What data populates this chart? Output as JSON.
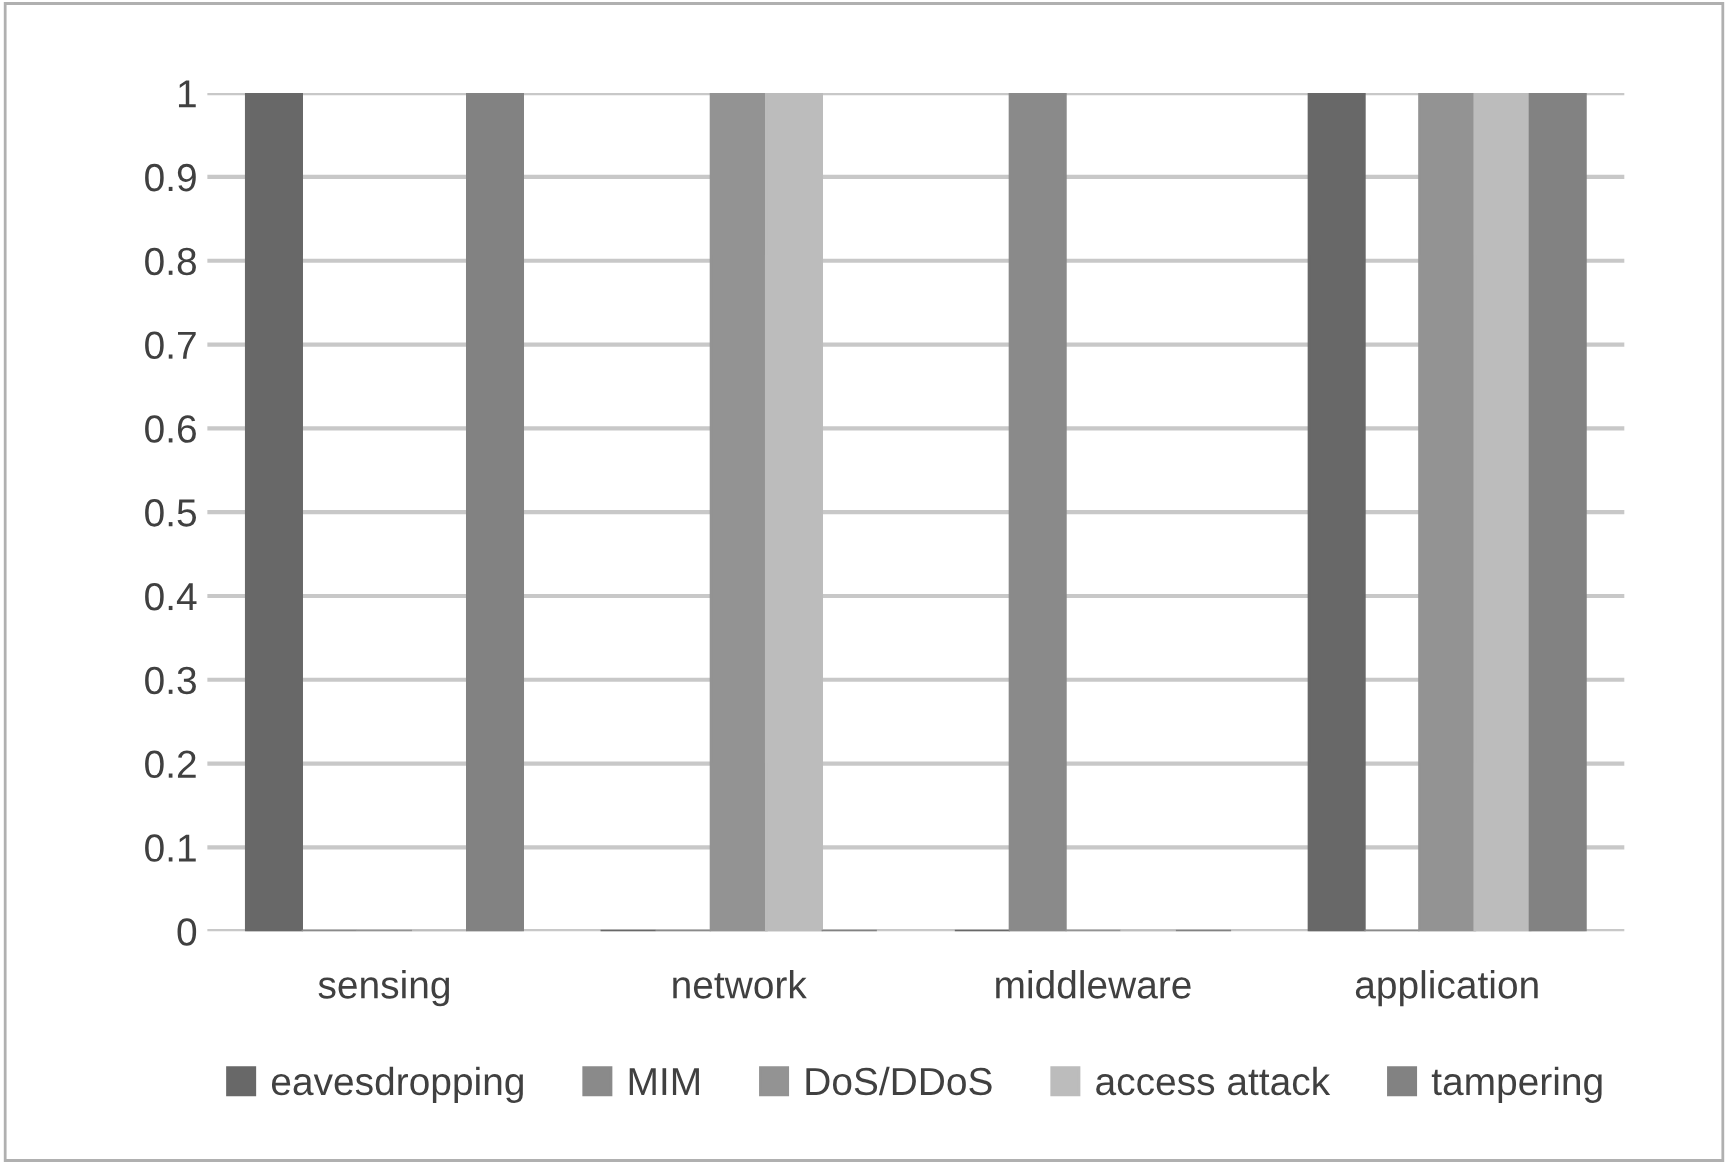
{
  "chart_data": {
    "type": "bar",
    "categories": [
      "sensing",
      "network",
      "middleware",
      "application"
    ],
    "series": [
      {
        "name": "eavesdropping",
        "color": "#686868",
        "values": [
          1,
          0,
          0,
          1
        ]
      },
      {
        "name": "MIM",
        "color": "#8a8a8a",
        "values": [
          0,
          0,
          1,
          0
        ]
      },
      {
        "name": "DoS/DDoS",
        "color": "#939393",
        "values": [
          0,
          1,
          0,
          1
        ]
      },
      {
        "name": "access attack",
        "color": "#bcbcbc",
        "values": [
          0,
          1,
          0,
          1
        ]
      },
      {
        "name": "tampering",
        "color": "#828282",
        "values": [
          1,
          0,
          0,
          1
        ]
      }
    ],
    "ylim": [
      0,
      1
    ],
    "yticks": [
      0,
      0.1,
      0.2,
      0.3,
      0.4,
      0.5,
      0.6,
      0.7,
      0.8,
      0.9,
      1
    ],
    "grid": "y",
    "legend": "bottom"
  }
}
